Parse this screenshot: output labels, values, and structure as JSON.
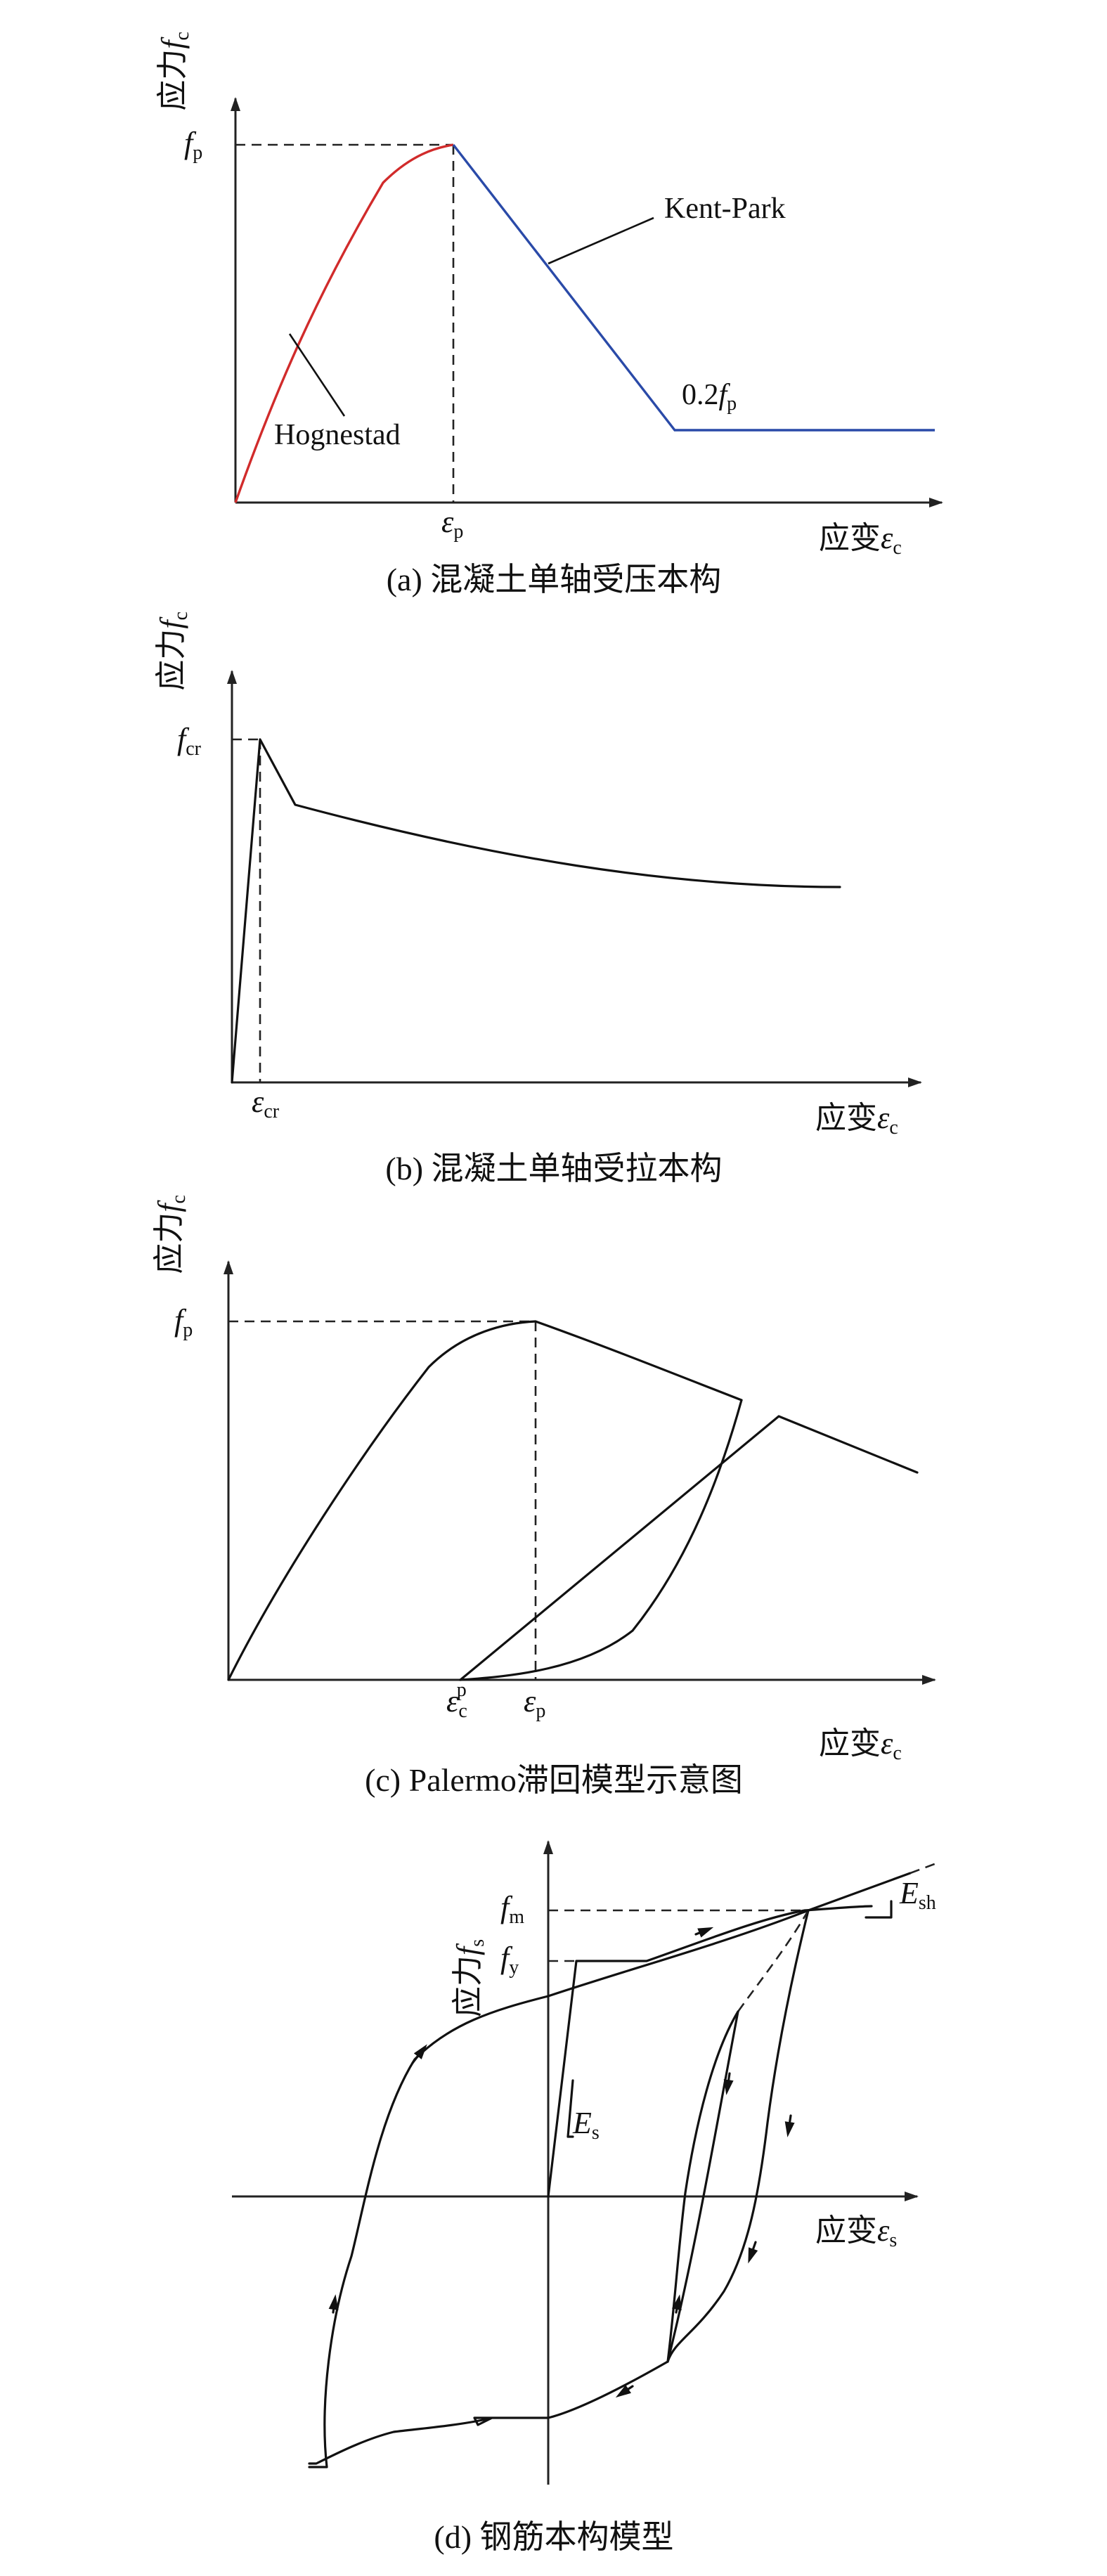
{
  "panels": {
    "a": {
      "caption": "(a) 混凝土单轴受压本构",
      "y_label": "应力f_c",
      "y_label_text": "应力",
      "y_label_sym": "f",
      "y_label_sub": "c",
      "x_label_text": "应变",
      "x_label_sym": "ε",
      "x_label_sub": "c",
      "tick_y_sym": "f",
      "tick_y_sub": "p",
      "tick_x_sym": "ε",
      "tick_x_sub": "p",
      "callout_kent": "Kent-Park",
      "callout_hog": "Hognestad",
      "residual_prefix": "0.2",
      "residual_sym": "f",
      "residual_sub": "p",
      "colors": {
        "hognestad": "#d12b2b",
        "kent_park": "#2a4aa8"
      }
    },
    "b": {
      "caption": "(b) 混凝土单轴受拉本构",
      "y_label_text": "应力",
      "y_label_sym": "f",
      "y_label_sub": "c",
      "x_label_text": "应变",
      "x_label_sym": "ε",
      "x_label_sub": "c",
      "tick_y_sym": "f",
      "tick_y_sub": "cr",
      "tick_x_sym": "ε",
      "tick_x_sub": "cr"
    },
    "c": {
      "caption": "(c) Palermo滞回模型示意图",
      "y_label_text": "应力",
      "y_label_sym": "f",
      "y_label_sub": "c",
      "x_label_text": "应变",
      "x_label_sym": "ε",
      "x_label_sub": "c",
      "tick_y_sym": "f",
      "tick_y_sub": "p",
      "tick_x1_sym": "ε",
      "tick_x1_sub": "c",
      "tick_x1_sup": "p",
      "tick_x2_sym": "ε",
      "tick_x2_sub": "p"
    },
    "d": {
      "caption": "(d) 钢筋本构模型",
      "y_label_text": "应力",
      "y_label_sym": "f",
      "y_label_sub": "s",
      "x_label_text": "应变",
      "x_label_sym": "ε",
      "x_label_sub": "s",
      "tick_fm_sym": "f",
      "tick_fm_sub": "m",
      "tick_fy_sym": "f",
      "tick_fy_sub": "y",
      "label_es_sym": "E",
      "label_es_sub": "s",
      "label_esh_sym": "E",
      "label_esh_sub": "sh"
    }
  }
}
